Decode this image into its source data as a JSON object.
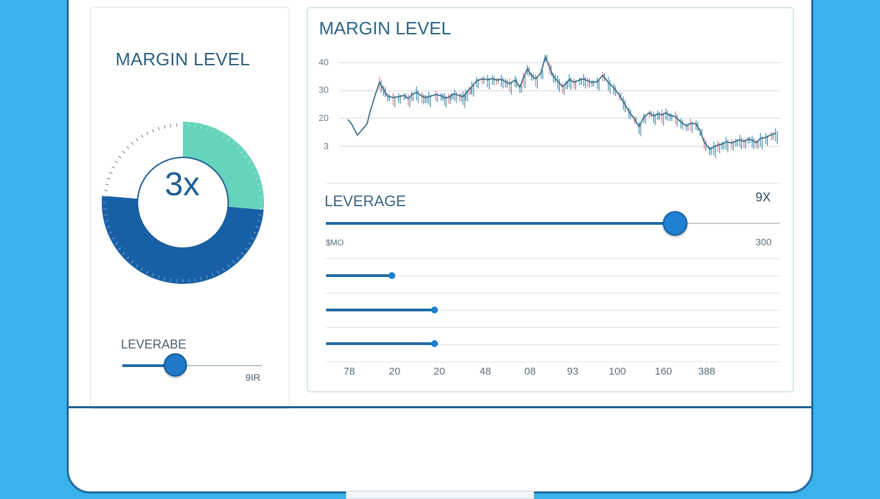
{
  "colors": {
    "background": "#3bb3ea",
    "primary": "#1f6aa5",
    "gauge_dark": "#1760a6",
    "gauge_light": "#66d4bd",
    "bull": "#4a9fc6",
    "bear": "#e48a9d",
    "text": "#2e5f7e"
  },
  "left_panel": {
    "title": "MARGIN LEVEL",
    "gauge": {
      "value_label": "3x",
      "segments": [
        {
          "name": "light",
          "start_deg": 0,
          "end_deg": 95,
          "color": "#66d4bd"
        },
        {
          "name": "dark",
          "start_deg": 95,
          "end_deg": 275,
          "color": "#1760a6"
        },
        {
          "name": "empty",
          "start_deg": 275,
          "end_deg": 360,
          "color": "#ffffff"
        }
      ]
    },
    "leverage": {
      "label": "LEVERABE",
      "max_label": "9IR",
      "position_pct": 38
    }
  },
  "right_panel": {
    "title": "MARGIN LEVEL",
    "y_ticks": [
      "40",
      "30",
      "20",
      "3"
    ],
    "leverage": {
      "label": "LEVERAGE",
      "value": "9X",
      "min_label": "$MO",
      "max_label": "300",
      "position_pct": 77
    },
    "sub_sliders": [
      {
        "position_pct": 14
      },
      {
        "position_pct": 24
      },
      {
        "position_pct": 24
      }
    ],
    "x_ticks": [
      "78",
      "20",
      "20",
      "48",
      "08",
      "93",
      "100",
      "160",
      "388"
    ]
  },
  "chart_data": {
    "type": "line",
    "title": "MARGIN LEVEL",
    "xlabel": "",
    "ylabel": "",
    "y_tick_labels": [
      "40",
      "30",
      "20",
      "3"
    ],
    "ylim": [
      3,
      45
    ],
    "x": [
      0,
      4,
      14,
      28,
      32,
      38,
      46,
      52,
      58,
      66,
      74,
      82,
      88,
      93,
      100,
      108,
      113,
      118,
      128,
      136,
      141,
      147,
      151,
      156,
      163,
      168,
      172,
      177,
      181,
      188,
      196,
      204,
      211,
      217,
      224,
      230,
      236,
      244,
      251,
      256,
      262,
      268,
      274,
      282,
      288,
      294,
      300,
      306,
      313,
      318,
      323,
      330,
      338,
      344,
      350,
      356,
      364,
      372,
      380,
      388,
      396,
      402,
      410,
      418,
      425,
      432,
      440,
      446,
      452,
      458,
      464,
      470,
      478,
      486,
      494,
      500,
      508,
      514,
      520,
      528,
      534,
      540,
      546,
      552,
      560,
      566,
      572,
      578,
      584,
      590,
      596,
      602,
      610,
      618,
      624
    ],
    "values": [
      19.5,
      18.5,
      14,
      18,
      22,
      27,
      33,
      30.5,
      28,
      27.5,
      27.8,
      28.3,
      27.2,
      28.5,
      29.5,
      28,
      27.5,
      27.8,
      28.6,
      28.2,
      27.4,
      27.6,
      28.4,
      28.8,
      28.2,
      27.8,
      29.0,
      30.5,
      31.5,
      33.5,
      34.2,
      33.9,
      34.3,
      33.8,
      34.0,
      33.2,
      32.5,
      33.8,
      31.2,
      34.5,
      37.8,
      35.4,
      34.2,
      36.5,
      42,
      38.5,
      35,
      33.5,
      31.5,
      32.5,
      34.0,
      33.0,
      33.8,
      34.2,
      33.5,
      33.0,
      33.2,
      35.5,
      33.0,
      31.0,
      28.5,
      26.0,
      22.5,
      19.8,
      17.0,
      20.5,
      22.0,
      20.8,
      21.6,
      21.2,
      22.0,
      21.0,
      20.6,
      18.6,
      17.3,
      18.2,
      18.0,
      15.5,
      11.5,
      9.0,
      9.8,
      10.5,
      10.8,
      11.6,
      11.2,
      11.8,
      12.4,
      11.7,
      12.6,
      12.2,
      11.3,
      12.8,
      13.2,
      14.2,
      14.6
    ]
  }
}
